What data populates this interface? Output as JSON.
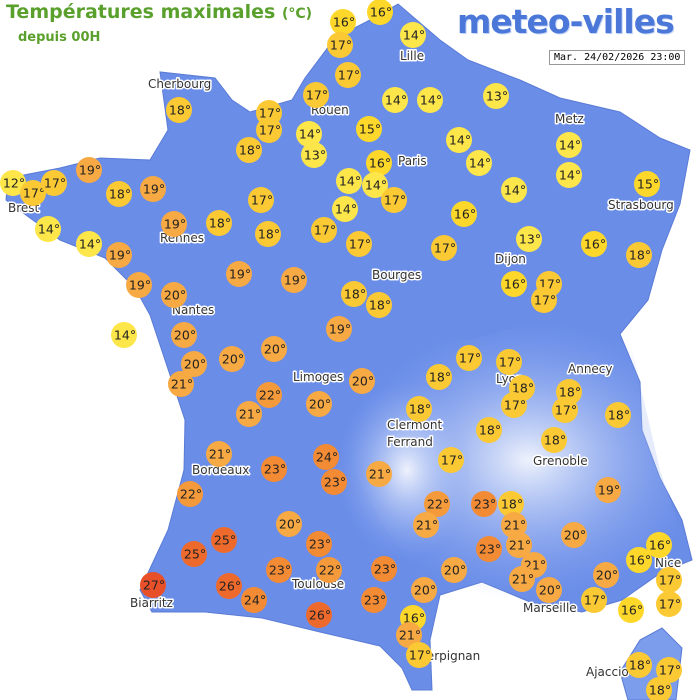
{
  "header": {
    "title": "Températures maximales",
    "unit": "(°C)",
    "subtitle": "depuis 00H",
    "logo": "meteo-villes",
    "date": "Mar. 24/02/2026 23:00"
  },
  "cities": [
    "Cherbourg",
    "Lille",
    "Rouen",
    "Metz",
    "Paris",
    "Brest",
    "Strasbourg",
    "Rennes",
    "Dijon",
    "Bourges",
    "Nantes",
    "Annecy",
    "Lyon",
    "Limoges",
    "Clermont",
    "Ferrand",
    "Grenoble",
    "Bordeaux",
    "Toulouse",
    "Nice",
    "Marseille",
    "Biarritz",
    "Perpignan",
    "Ajaccio"
  ],
  "temperatures": [
    "16°",
    "16°",
    "17°",
    "14°",
    "17°",
    "17°",
    "14°",
    "14°",
    "13°",
    "18°",
    "17°",
    "17°",
    "14°",
    "15°",
    "18°",
    "13°",
    "14°",
    "14°",
    "19°",
    "16°",
    "14°",
    "14°",
    "12°",
    "17°",
    "17°",
    "18°",
    "19°",
    "14°",
    "14°",
    "17°",
    "14°",
    "15°",
    "17°",
    "14°",
    "16°",
    "14°",
    "19°",
    "18°",
    "14°",
    "18°",
    "17°",
    "17°",
    "13°",
    "17°",
    "16°",
    "18°",
    "19°",
    "19°",
    "19°",
    "17°",
    "16°",
    "17°",
    "19°",
    "20°",
    "18°",
    "18°",
    "14°",
    "20°",
    "19°",
    "20°",
    "20°",
    "20°",
    "17°",
    "17°",
    "21°",
    "18°",
    "18°",
    "20°",
    "18°",
    "22°",
    "21°",
    "20°",
    "18°",
    "17°",
    "17°",
    "18°",
    "18°",
    "18°",
    "21°",
    "24°",
    "23°",
    "23°",
    "21°",
    "17°",
    "19°",
    "22°",
    "22°",
    "23°",
    "18°",
    "21°",
    "21°",
    "20°",
    "20°",
    "25°",
    "23°",
    "23°",
    "21°",
    "16°",
    "16°",
    "25°",
    "21°",
    "21°",
    "20°",
    "23°",
    "23°",
    "22°",
    "20°",
    "17°",
    "27°",
    "26°",
    "20°",
    "20°",
    "24°",
    "23°",
    "17°",
    "16°",
    "17°",
    "26°",
    "16°",
    "21°",
    "17°",
    "18°",
    "17°",
    "18°"
  ]
}
